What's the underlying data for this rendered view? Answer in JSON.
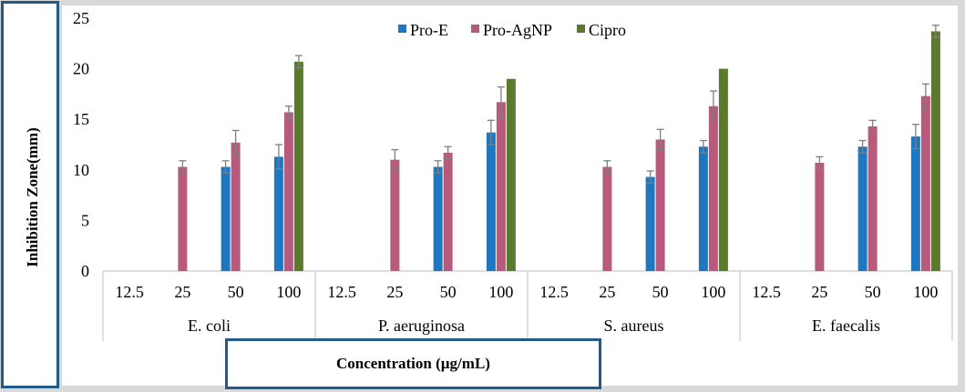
{
  "chart_data": {
    "type": "bar",
    "ylabel": "Inhibition Zone(mm)",
    "xlabel": "Concentration (µg/mL)",
    "ylim": [
      0,
      25
    ],
    "yticks": [
      0,
      5,
      10,
      15,
      20,
      25
    ],
    "groups": [
      {
        "name": "E. coli",
        "concentrations": [
          "12.5",
          "25",
          "50",
          "100"
        ]
      },
      {
        "name": "P. aeruginosa",
        "concentrations": [
          "12.5",
          "25",
          "50",
          "100"
        ]
      },
      {
        "name": "S. aureus",
        "concentrations": [
          "12.5",
          "25",
          "50",
          "100"
        ]
      },
      {
        "name": "E. faecalis",
        "concentrations": [
          "12.5",
          "25",
          "50",
          "100"
        ]
      }
    ],
    "series": [
      {
        "name": "Pro-E",
        "color": "#1f77c0",
        "values": [
          [
            0,
            0,
            10.3,
            11.3
          ],
          [
            0,
            0,
            10.3,
            13.7
          ],
          [
            0,
            0,
            9.3,
            12.3
          ],
          [
            0,
            0,
            12.3,
            13.3
          ]
        ],
        "errors": [
          [
            0,
            0,
            0.6,
            1.2
          ],
          [
            0,
            0,
            0.6,
            1.2
          ],
          [
            0,
            0,
            0.6,
            0.6
          ],
          [
            0,
            0,
            0.6,
            1.2
          ]
        ]
      },
      {
        "name": "Pro-AgNP",
        "color": "#b85a7c",
        "values": [
          [
            0,
            10.3,
            12.7,
            15.7
          ],
          [
            0,
            11.0,
            11.7,
            16.7
          ],
          [
            0,
            10.3,
            13.0,
            16.3
          ],
          [
            0,
            10.7,
            14.3,
            17.3
          ]
        ],
        "errors": [
          [
            0,
            0.6,
            1.2,
            0.6
          ],
          [
            0,
            1.0,
            0.6,
            1.5
          ],
          [
            0,
            0.6,
            1.0,
            1.5
          ],
          [
            0,
            0.6,
            0.6,
            1.2
          ]
        ]
      },
      {
        "name": "Cipro",
        "color": "#5b7a2e",
        "values": [
          [
            0,
            0,
            0,
            20.7
          ],
          [
            0,
            0,
            0,
            19.0
          ],
          [
            0,
            0,
            0,
            20.0
          ],
          [
            0,
            0,
            0,
            23.7
          ]
        ],
        "errors": [
          [
            0,
            0,
            0,
            0.6
          ],
          [
            0,
            0,
            0,
            0
          ],
          [
            0,
            0,
            0,
            0
          ],
          [
            0,
            0,
            0,
            0.6
          ]
        ]
      }
    ]
  }
}
